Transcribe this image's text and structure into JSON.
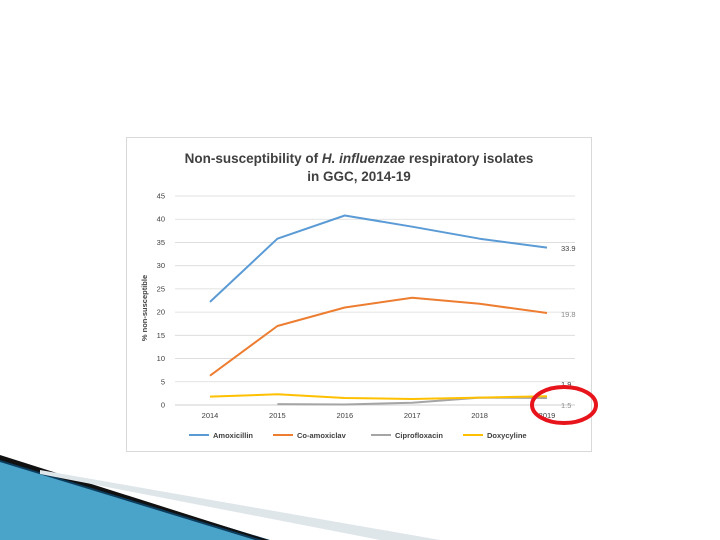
{
  "colors": {
    "amoxicillin": "#5b9bd5",
    "co_amoxiclav": "#ed7d31",
    "ciprofloxacin": "#a5a5a5",
    "doxycyline": "#ffc000",
    "highlight_circle": "#e8141b",
    "grid": "#d9d9d9"
  },
  "chart_data": {
    "type": "line",
    "title_parts": [
      "Non-susceptibility of ",
      "H. influenzae",
      " respiratory isolates"
    ],
    "title_line2": "in GGC, 2014-19",
    "ylabel": "% non-susceptible",
    "xlabel": "",
    "ylim": [
      0,
      45
    ],
    "yticks": [
      "0",
      "5",
      "10",
      "15",
      "20",
      "25",
      "30",
      "35",
      "40",
      "45"
    ],
    "categories": [
      "2014",
      "2015",
      "2016",
      "2017",
      "2018",
      "2019"
    ],
    "grid": true,
    "legend_position": "bottom",
    "series": [
      {
        "name": "Amoxicillin",
        "values": [
          22.2,
          35.8,
          40.8,
          38.4,
          35.8,
          33.9
        ],
        "end_label": "33.9",
        "color_key": "amoxicillin"
      },
      {
        "name": "Co-amoxiclav",
        "values": [
          6.3,
          17.0,
          21.0,
          23.1,
          21.8,
          19.8
        ],
        "end_label": "19.8",
        "color_key": "co_amoxiclav"
      },
      {
        "name": "Ciprofloxacin",
        "values": [
          null,
          0.2,
          0.1,
          0.5,
          1.6,
          1.5
        ],
        "end_label": "1.5",
        "color_key": "ciprofloxacin"
      },
      {
        "name": "Doxycyline",
        "values": [
          1.8,
          2.3,
          1.5,
          1.3,
          1.6,
          1.9
        ],
        "end_label": "1.9",
        "color_key": "doxycyline"
      }
    ]
  }
}
